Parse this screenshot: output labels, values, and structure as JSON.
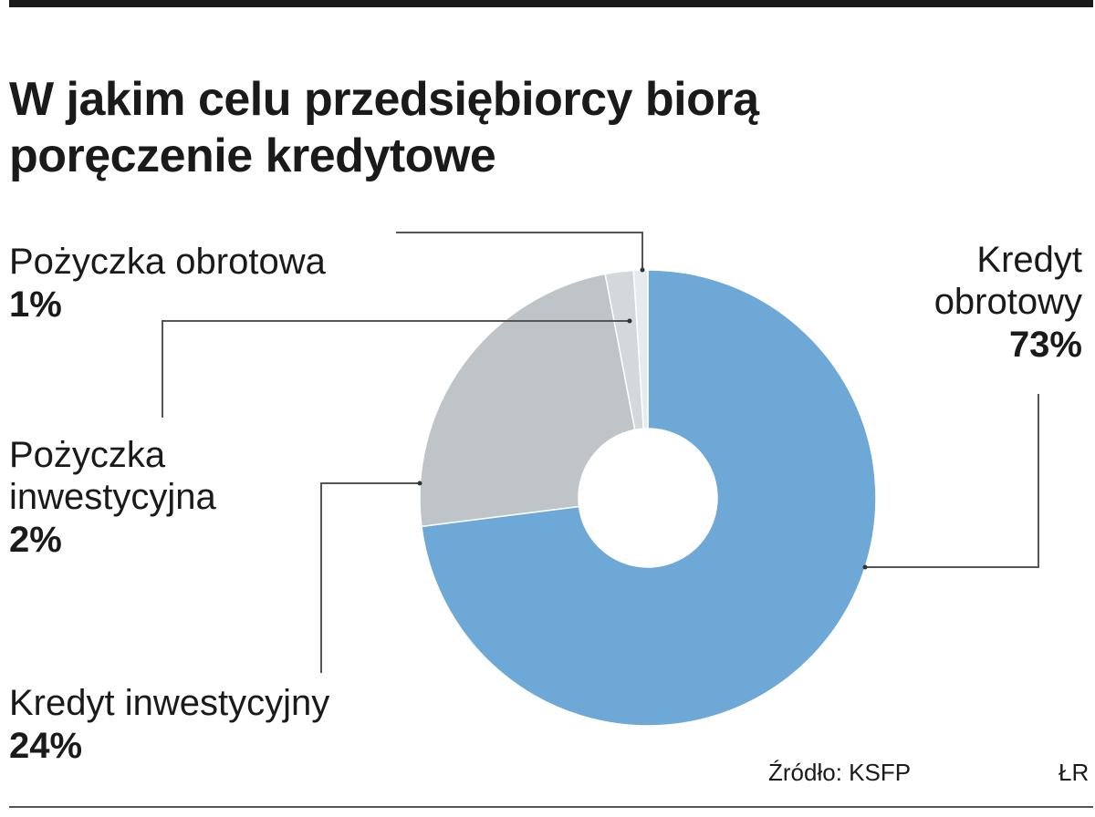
{
  "title": "W jakim celu przedsiębiorcy biorą poręczenie kredytowe",
  "source": "Źródło: KSFP",
  "credit": "ŁR",
  "colors": {
    "kredyt_obrotowy": "#6ea8d6",
    "kredyt_inwestycyjny": "#bfc4c9",
    "pozyczka_inwestycyjna": "#d3d8dc",
    "pozyczka_obrotowa": "#e6ebee"
  },
  "chart_data": {
    "type": "pie",
    "donut": true,
    "start": "top",
    "direction": "clockwise",
    "slices": [
      {
        "label": "Kredyt obrotowy",
        "value": 73,
        "value_label": "73%",
        "color": "#6ea8d6"
      },
      {
        "label": "Kredyt inwestycyjny",
        "value": 24,
        "value_label": "24%",
        "color": "#bfc4c9"
      },
      {
        "label": "Pożyczka inwestycyjna",
        "value": 2,
        "value_label": "2%",
        "color": "#d3d8dc"
      },
      {
        "label": "Pożyczka obrotowa",
        "value": 1,
        "value_label": "1%",
        "color": "#e6ebee"
      }
    ]
  },
  "labels": {
    "kredyt_obrotowy": {
      "name": "Kredyt\nobrotowy",
      "pct": "73%"
    },
    "kredyt_inwestycyjny": {
      "name": "Kredyt inwestycyjny",
      "pct": "24%"
    },
    "pozyczka_inwestycyjna": {
      "name": "Pożyczka\ninwestycyjna",
      "pct": "2%"
    },
    "pozyczka_obrotowa": {
      "name": "Pożyczka obrotowa",
      "pct": "1%"
    }
  }
}
